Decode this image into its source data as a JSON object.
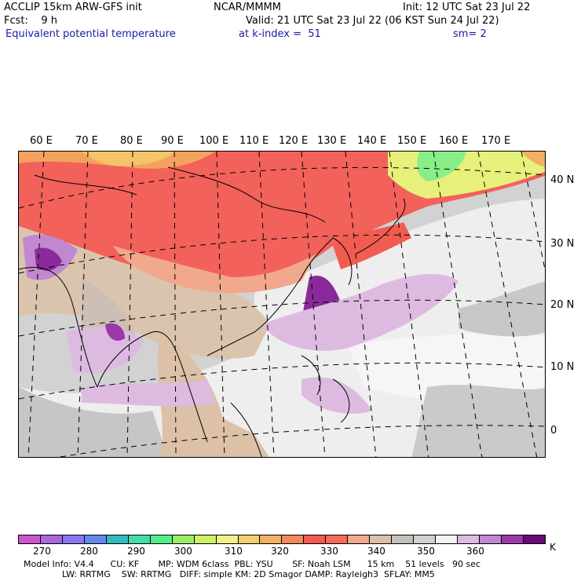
{
  "header": {
    "model": "ACCLIP 15km ARW-GFS init",
    "center": "NCAR/MMMM",
    "init": "Init: 12 UTC Sat 23 Jul 22",
    "fcst": "Fcst:    9 h",
    "valid": "Valid: 21 UTC Sat 23 Jul 22 (06 KST Sun 24 Jul 22)",
    "field": "Equivalent potential temperature",
    "level": "at k-index =  51",
    "smooth": "sm= 2"
  },
  "map": {
    "lon_labels": [
      "60 E",
      "70 E",
      "80 E",
      "90 E",
      "100 E",
      "110 E",
      "120 E",
      "130 E",
      "140 E",
      "150 E",
      "160 E",
      "170 E"
    ],
    "lat_labels": [
      "40 N",
      "30 N",
      "20 N",
      "10 N",
      "0"
    ]
  },
  "colorbar": {
    "colors": [
      "#cc55cc",
      "#aa66dd",
      "#8877ee",
      "#6688ee",
      "#33bbbb",
      "#44ddaa",
      "#55ee88",
      "#99ee66",
      "#ccf066",
      "#f4f088",
      "#f0d070",
      "#f2b060",
      "#f48a58",
      "#f25c50",
      "#f66a58",
      "#f2a88c",
      "#dcc0a8",
      "#c4c0bc",
      "#d0d0d0",
      "#f2f2f2",
      "#ddbbe0",
      "#c088d0",
      "#9a3aa8",
      "#6a0a7a"
    ],
    "unit": "K",
    "ticks": [
      "270",
      "280",
      "290",
      "300",
      "310",
      "320",
      "330",
      "340",
      "350",
      "360"
    ]
  },
  "footer": {
    "line1": "Model Info: V4.4      CU: KF       MP: WDM 6class  PBL: YSU       SF: Noah LSM      15 km    51 levels   90 sec",
    "line2": "              LW: RRTMG    SW: RRTMG   DIFF: simple KM: 2D Smagor DAMP: Rayleigh3  SFLAY: MM5"
  }
}
